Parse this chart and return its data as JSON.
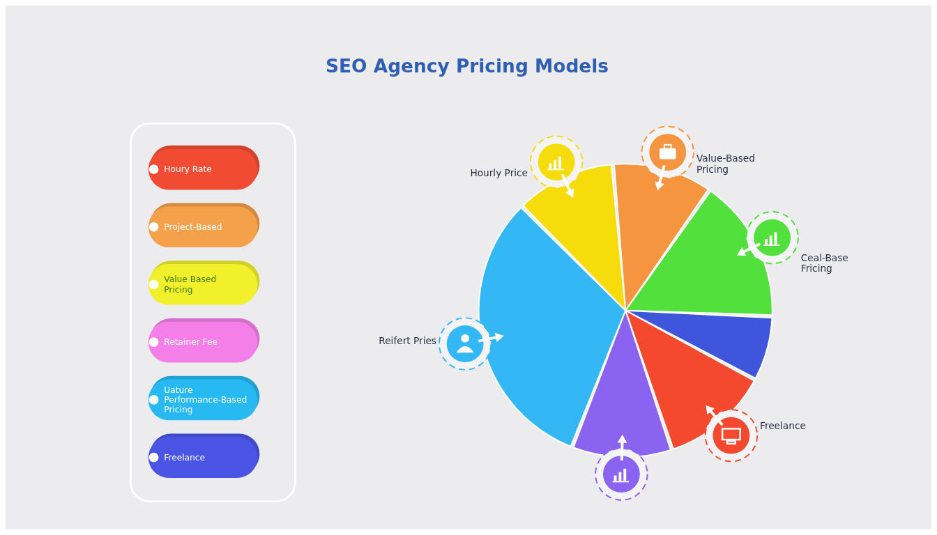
{
  "chart_data": {
    "type": "pie",
    "title": "SEO Agency Pricing Models",
    "categories": [
      "Value-Based\nPricing",
      "Ceal-Base\nFricing",
      null,
      "Freelance",
      null,
      "Reifert Pries",
      "Hourly Price"
    ],
    "values": [
      11,
      16,
      7,
      12,
      11,
      32,
      11
    ],
    "colors": [
      "#f5953f",
      "#52e03c",
      "#3f55db",
      "#f4492e",
      "#8a63f0",
      "#33b8f5",
      "#f7dc0c"
    ],
    "annotations": [
      "Houry Rate",
      "Project-Based",
      "Value Based\nPricing",
      "Retainer Fee",
      "Uature\nPerformance-Based\nPricing",
      "Freelance"
    ]
  }
}
